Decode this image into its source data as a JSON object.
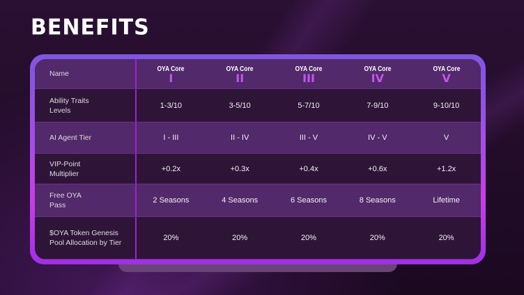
{
  "title": "BENEFITS",
  "table": {
    "name_label": "Name",
    "tiers": [
      {
        "title": "OYA Core",
        "numeral": "I"
      },
      {
        "title": "OYA Core",
        "numeral": "II"
      },
      {
        "title": "OYA Core",
        "numeral": "III"
      },
      {
        "title": "OYA Core",
        "numeral": "IV"
      },
      {
        "title": "OYA Core",
        "numeral": "V"
      }
    ],
    "rows": [
      {
        "label": "Ability Traits Levels",
        "values": [
          "1-3/10",
          "3-5/10",
          "5-7/10",
          "7-9/10",
          "9-10/10"
        ]
      },
      {
        "label": "AI Agent Tier",
        "values": [
          "I - III",
          "II - IV",
          "III - V",
          "IV - V",
          "V"
        ]
      },
      {
        "label": "VIP-Point Multiplier",
        "values": [
          "+0.2x",
          "+0.3x",
          "+0.4x",
          "+0.6x",
          "+1.2x"
        ]
      },
      {
        "label": "Free OYA Pass",
        "values": [
          "2 Seasons",
          "4 Seasons",
          "6 Seasons",
          "8 Seasons",
          "Lifetime"
        ]
      },
      {
        "label": "$OYA Token Genesis Pool Allocation by Tier",
        "values": [
          "20%",
          "20%",
          "20%",
          "20%",
          "20%"
        ]
      }
    ]
  },
  "colors": {
    "accent": "#c455f0",
    "divider": "#a020d0"
  }
}
